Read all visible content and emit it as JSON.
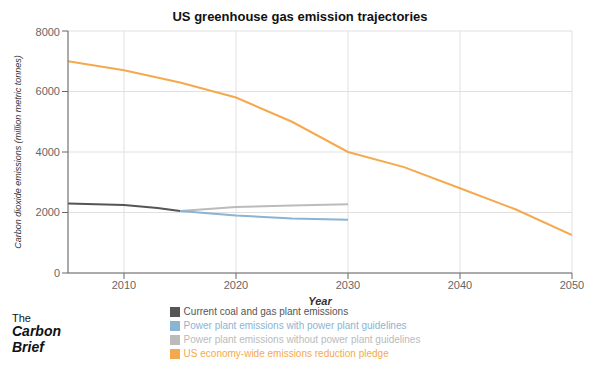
{
  "chart_data": {
    "type": "line",
    "title": "US greenhouse gas emission trajectories",
    "xlabel": "Year",
    "ylabel": "Carbon dioxide emissions (million metric tonnes)",
    "xlim": [
      2005,
      2050
    ],
    "ylim": [
      0,
      8000
    ],
    "xticks": [
      2010,
      2020,
      2030,
      2040,
      2050
    ],
    "yticks": [
      0,
      2000,
      4000,
      6000,
      8000
    ],
    "grid": true,
    "legend": "bottom",
    "series": [
      {
        "name": "US economy-wide emissions reduction pledge",
        "color": "#f5a94e",
        "x": [
          2005,
          2010,
          2015,
          2020,
          2025,
          2030,
          2035,
          2040,
          2045,
          2050
        ],
        "values": [
          7000,
          6700,
          6300,
          5800,
          5000,
          4000,
          3500,
          2800,
          2100,
          1250
        ]
      },
      {
        "name": "Current coal and gas plant emissions",
        "color": "#555555",
        "x": [
          2005,
          2010,
          2013,
          2015
        ],
        "values": [
          2300,
          2250,
          2150,
          2050
        ]
      },
      {
        "name": "Power plant emissions without power plant guidelines",
        "color": "#bbbbbb",
        "x": [
          2015,
          2020,
          2025,
          2030
        ],
        "values": [
          2050,
          2180,
          2230,
          2270
        ]
      },
      {
        "name": "Power plant emissions with power plant guidelines",
        "color": "#8ab4d4",
        "x": [
          2015,
          2020,
          2025,
          2030
        ],
        "values": [
          2050,
          1900,
          1800,
          1760
        ]
      }
    ],
    "annotations": [
      "The",
      "Carbon",
      "Brief"
    ]
  }
}
